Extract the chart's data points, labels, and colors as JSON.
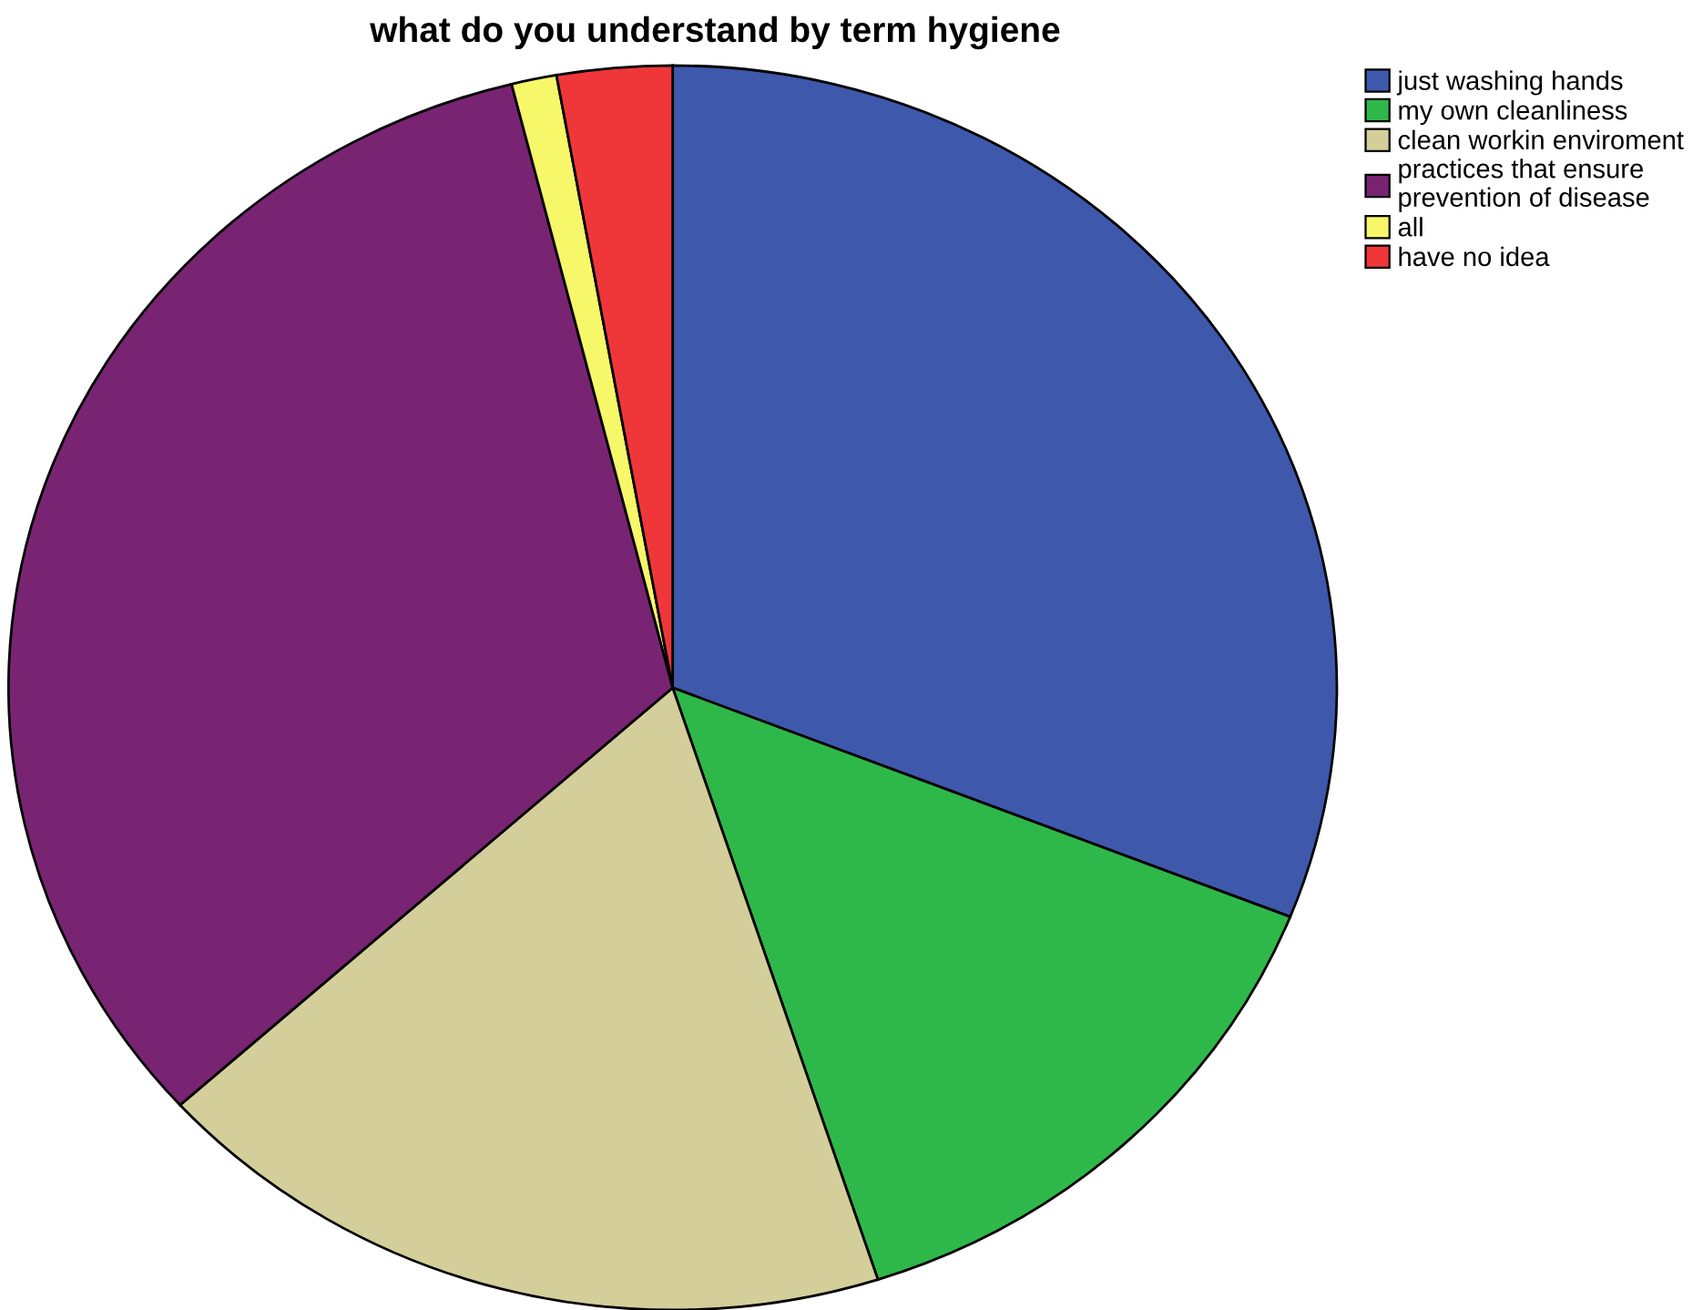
{
  "chart_data": {
    "type": "pie",
    "title": "what do you understand by term hygiene",
    "categories": [
      "just washing hands",
      "my own cleanliness",
      "clean workin enviroment",
      "practices that ensure\nprevention of disease",
      "all",
      "have no idea"
    ],
    "values": [
      31,
      14,
      18.3,
      32.8,
      1.1,
      2.8
    ],
    "colors": [
      "#3e58ac",
      "#2fb84a",
      "#d3ce9a",
      "#782473",
      "#f7f76a",
      "#ef3739"
    ],
    "legend": "top right"
  }
}
